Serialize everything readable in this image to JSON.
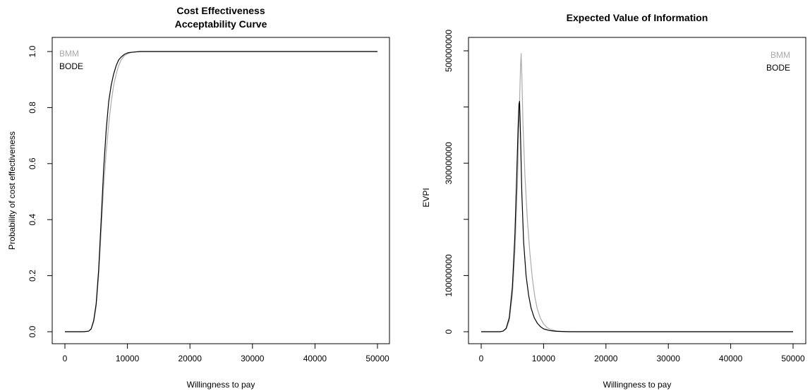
{
  "chart_data": [
    {
      "type": "line",
      "title": [
        "Cost Effectiveness",
        "Acceptability Curve"
      ],
      "xlabel": "Willingness to pay",
      "ylabel": "Probability of cost effectiveness",
      "xlim": [
        0,
        50000
      ],
      "ylim": [
        0,
        1
      ],
      "x_ticks": [
        0,
        10000,
        20000,
        30000,
        40000,
        50000
      ],
      "x_tick_labels": [
        "0",
        "10000",
        "20000",
        "30000",
        "40000",
        "50000"
      ],
      "y_ticks": [
        0,
        0.2,
        0.4,
        0.6,
        0.8,
        1.0
      ],
      "y_tick_labels": [
        "0.0",
        "0.2",
        "0.4",
        "0.6",
        "0.8",
        "1.0"
      ],
      "grid": false,
      "legend_position": "top-left",
      "series": [
        {
          "name": "BMM",
          "color": "#aaaaaa",
          "x": [
            0,
            3000,
            3800,
            4200,
            4600,
            5000,
            5400,
            5800,
            6200,
            6600,
            7000,
            7400,
            7800,
            8200,
            8600,
            9000,
            9500,
            10000,
            10500,
            11000,
            12000,
            14000,
            50000
          ],
          "y": [
            0,
            0,
            0.002,
            0.01,
            0.035,
            0.09,
            0.2,
            0.36,
            0.52,
            0.64,
            0.74,
            0.82,
            0.88,
            0.92,
            0.95,
            0.97,
            0.985,
            0.992,
            0.996,
            0.998,
            1.0,
            1.0,
            1.0
          ]
        },
        {
          "name": "BODE",
          "color": "#000000",
          "x": [
            0,
            3000,
            3800,
            4200,
            4600,
            5000,
            5400,
            5800,
            6200,
            6600,
            7000,
            7400,
            7800,
            8200,
            8600,
            9000,
            9500,
            10000,
            10500,
            11000,
            12000,
            14000,
            50000
          ],
          "y": [
            0,
            0,
            0.002,
            0.01,
            0.04,
            0.1,
            0.22,
            0.4,
            0.58,
            0.72,
            0.82,
            0.88,
            0.92,
            0.95,
            0.97,
            0.98,
            0.99,
            0.995,
            0.997,
            0.998,
            1.0,
            1.0,
            1.0
          ]
        }
      ]
    },
    {
      "type": "line",
      "title": [
        "Expected Value of Information"
      ],
      "xlabel": "Willingness to pay",
      "ylabel": "EVPI",
      "xlim": [
        0,
        50000
      ],
      "ylim": [
        0,
        500000000
      ],
      "x_ticks": [
        0,
        10000,
        20000,
        30000,
        40000,
        50000
      ],
      "x_tick_labels": [
        "0",
        "10000",
        "20000",
        "30000",
        "40000",
        "50000"
      ],
      "y_ticks": [
        0,
        100000000,
        200000000,
        300000000,
        400000000,
        500000000
      ],
      "y_tick_labels": [
        "0",
        "100000000",
        "",
        "300000000",
        "",
        "500000000"
      ],
      "grid": false,
      "legend_position": "top-right",
      "series": [
        {
          "name": "BMM",
          "color": "#aaaaaa",
          "x": [
            0,
            3000,
            3500,
            4000,
            4500,
            5000,
            5400,
            5800,
            6100,
            6300,
            6400,
            6500,
            6700,
            7000,
            7400,
            7800,
            8200,
            8600,
            9000,
            9500,
            10000,
            10500,
            11000,
            12000,
            13000,
            15000,
            50000
          ],
          "y": [
            0,
            0,
            1000000,
            5000000,
            20000000,
            65000000,
            140000000,
            260000000,
            390000000,
            470000000,
            495000000,
            460000000,
            370000000,
            280000000,
            200000000,
            140000000,
            95000000,
            62000000,
            40000000,
            24000000,
            14000000,
            8000000,
            4500000,
            1500000,
            500000,
            0,
            0
          ]
        },
        {
          "name": "BODE",
          "color": "#000000",
          "x": [
            0,
            3000,
            3500,
            4000,
            4500,
            5000,
            5400,
            5700,
            5900,
            6050,
            6150,
            6300,
            6500,
            6800,
            7200,
            7600,
            8000,
            8500,
            9000,
            9500,
            10000,
            11000,
            12000,
            14000,
            50000
          ],
          "y": [
            0,
            0,
            1000000,
            6000000,
            25000000,
            80000000,
            170000000,
            280000000,
            360000000,
            405000000,
            410000000,
            350000000,
            250000000,
            160000000,
            100000000,
            65000000,
            42000000,
            25000000,
            15000000,
            9000000,
            5000000,
            2000000,
            700000,
            0,
            0
          ]
        }
      ]
    }
  ]
}
